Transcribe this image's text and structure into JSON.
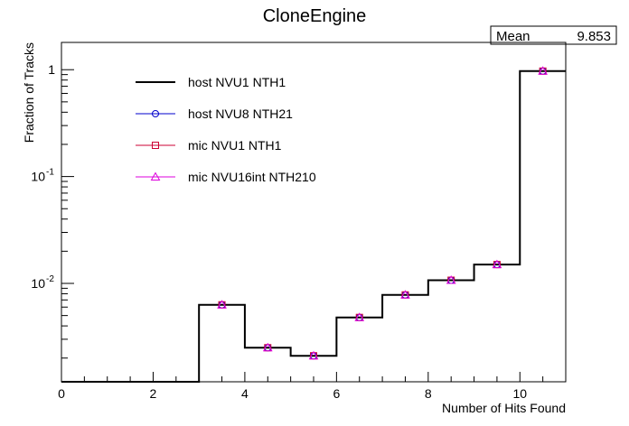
{
  "chart_data": {
    "type": "step-histogram",
    "title": "CloneEngine",
    "xlabel": "Number of Hits Found",
    "ylabel": "Fraction of Tracks",
    "xlim": [
      0,
      11
    ],
    "ylim": [
      0.0012,
      1.8
    ],
    "yscale": "log",
    "x_ticks": [
      0,
      2,
      4,
      6,
      8,
      10
    ],
    "y_ticks": [
      {
        "value": 1,
        "label": "1",
        "sup": ""
      },
      {
        "value": 0.1,
        "label": "10",
        "sup": "-1"
      },
      {
        "value": 0.01,
        "label": "10",
        "sup": "-2"
      }
    ],
    "stats": {
      "label": "Mean",
      "value": "9.853"
    },
    "bin_edges": [
      0,
      1,
      2,
      3,
      4,
      5,
      6,
      7,
      8,
      9,
      10,
      11
    ],
    "series": [
      {
        "name": "host NVU1 NTH1",
        "marker": "none",
        "color": "#000000",
        "values": [
          0,
          0,
          0,
          0.0063,
          0.0025,
          0.0021,
          0.0048,
          0.0078,
          0.0107,
          0.015,
          0.97
        ]
      },
      {
        "name": "host NVU8 NTH21",
        "marker": "circle",
        "color": "#0000cc",
        "values": [
          0,
          0,
          0,
          0.0063,
          0.0025,
          0.0021,
          0.0048,
          0.0078,
          0.0107,
          0.015,
          0.97
        ]
      },
      {
        "name": "mic NVU1 NTH1",
        "marker": "square",
        "color": "#cc0033",
        "values": [
          0,
          0,
          0,
          0.0063,
          0.0025,
          0.0021,
          0.0048,
          0.0078,
          0.0107,
          0.015,
          0.97
        ]
      },
      {
        "name": "mic NVU16int NTH210",
        "marker": "triangle",
        "color": "#dd00dd",
        "values": [
          0,
          0,
          0,
          0.0063,
          0.0025,
          0.0021,
          0.0048,
          0.0078,
          0.0107,
          0.015,
          0.97
        ]
      }
    ]
  }
}
